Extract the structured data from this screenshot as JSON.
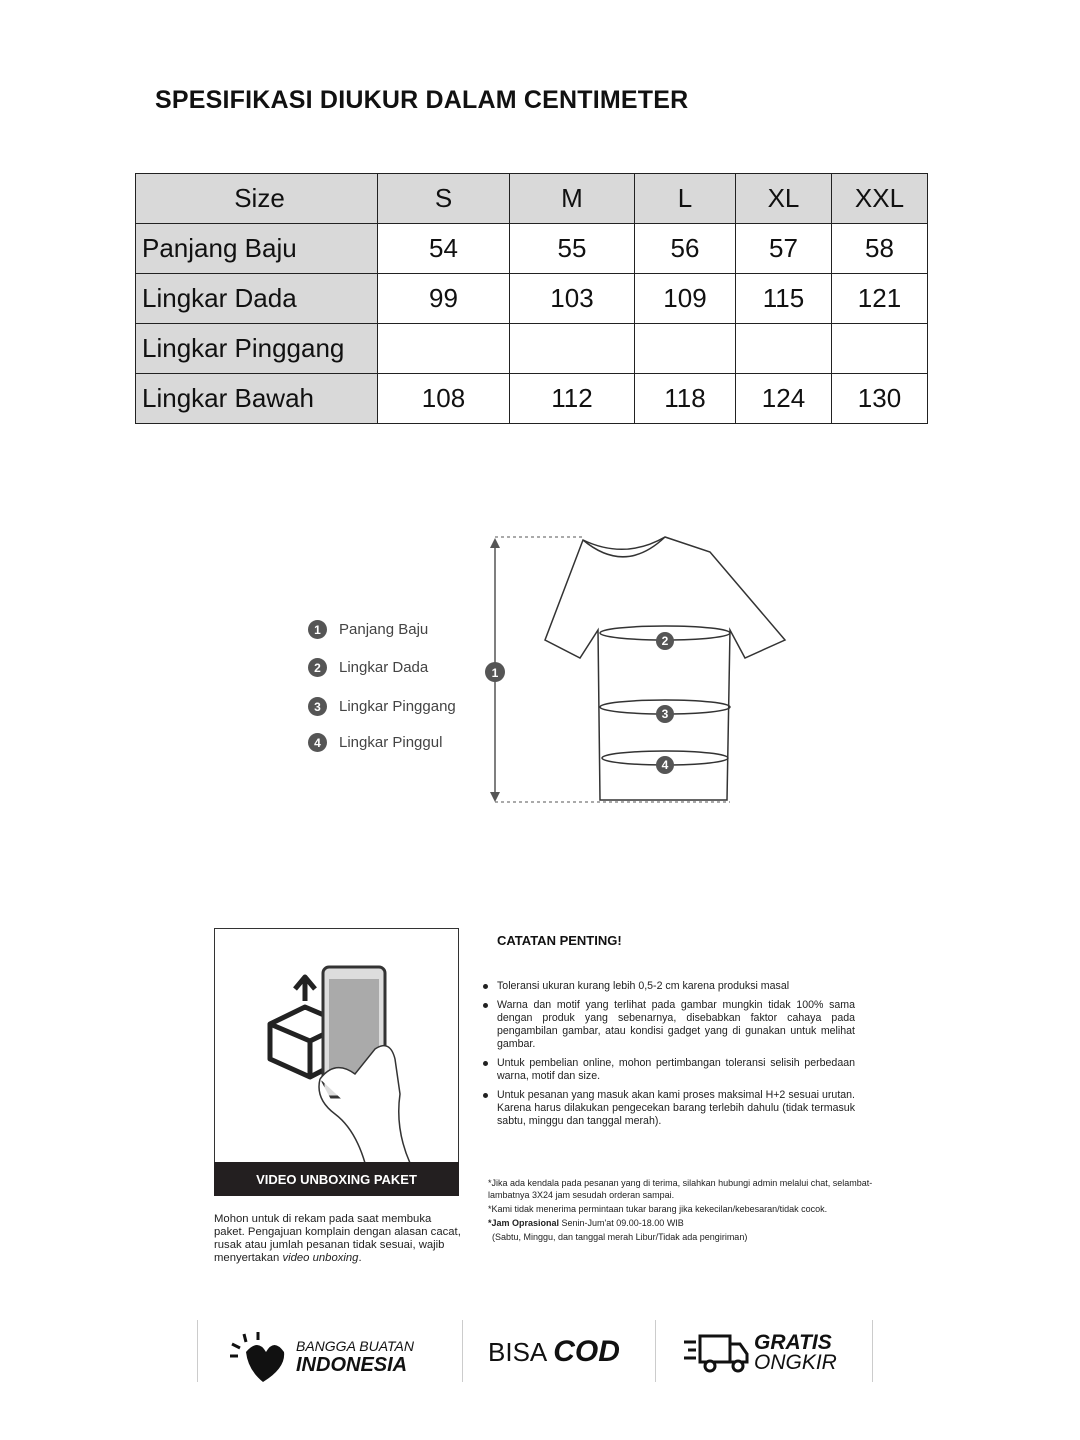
{
  "title": "SPESIFIKASI DIUKUR DALAM CENTIMETER",
  "table": {
    "header": [
      "Size",
      "S",
      "M",
      "L",
      "XL",
      "XXL"
    ],
    "rows": [
      {
        "label": "Panjang Baju",
        "values": [
          "54",
          "55",
          "56",
          "57",
          "58"
        ]
      },
      {
        "label": "Lingkar Dada",
        "values": [
          "99",
          "103",
          "109",
          "115",
          "121"
        ]
      },
      {
        "label": "Lingkar Pinggang",
        "values": [
          "",
          "",
          "",
          "",
          ""
        ]
      },
      {
        "label": "Lingkar Bawah",
        "values": [
          "108",
          "112",
          "118",
          "124",
          "130"
        ]
      }
    ]
  },
  "legend": [
    {
      "num": "1",
      "label": "Panjang Baju"
    },
    {
      "num": "2",
      "label": "Lingkar Dada"
    },
    {
      "num": "3",
      "label": "Lingkar Pinggang"
    },
    {
      "num": "4",
      "label": "Lingkar Pinggul"
    }
  ],
  "unboxing": {
    "banner": "VIDEO UNBOXING PAKET",
    "text": "Mohon untuk di rekam pada saat membuka paket. Pengajuan komplain dengan alasan cacat, rusak atau jumlah pesanan tidak sesuai, wajib menyertakan ",
    "text_em": "video unboxing",
    "text_end": "."
  },
  "notes": {
    "title": "CATATAN PENTING!",
    "items": [
      "Toleransi ukuran kurang lebih 0,5-2 cm karena produksi masal",
      "Warna dan motif yang terlihat pada gambar mungkin tidak 100% sama dengan produk yang sebenarnya, disebabkan faktor cahaya pada pengambilan gambar, atau kondisi gadget yang di gunakan untuk melihat gambar.",
      "Untuk pembelian online, mohon pertimbangan toleransi selisih perbedaan warna, motif dan size.",
      "Untuk pesanan yang masuk akan kami proses maksimal H+2 sesuai urutan. Karena harus dilakukan pengecekan barang terlebih dahulu (tidak termasuk sabtu, minggu dan tanggal merah)."
    ],
    "footnotes": {
      "f1": "*Jika ada kendala pada pesanan yang di terima, silahkan hubungi admin melalui chat, selambat-lambatnya 3X24 jam sesudah orderan sampai.",
      "f2": "*Kami tidak menerima permintaan tukar barang jika kekecilan/kebesaran/tidak cocok.",
      "f3_bold": "*Jam Oprasional",
      "f3": " Senin-Jum'at 09.00-18.00 WIB",
      "f4": "(Sabtu, Minggu, dan tanggal merah Libur/Tidak ada pengiriman)"
    }
  },
  "badges": {
    "b1_top": "BANGGA BUATAN",
    "b1_bottom": "INDONESIA",
    "b2_light": "BISA",
    "b2_bold": "COD",
    "b3_top": "GRATIS",
    "b3_bottom": "ONGKIR"
  }
}
